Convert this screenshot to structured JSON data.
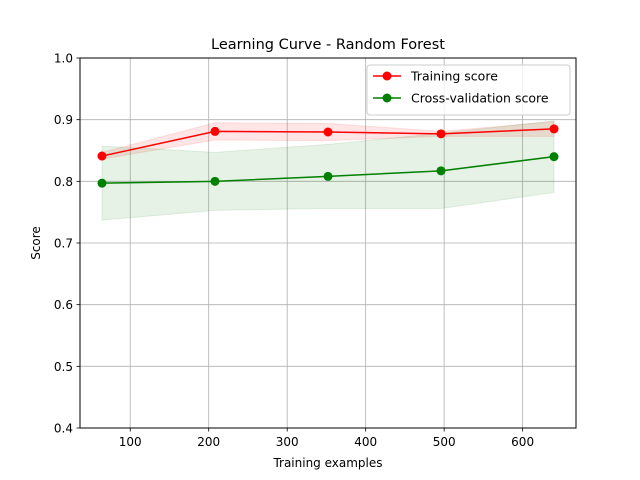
{
  "chart_data": {
    "type": "line",
    "title": "Learning Curve - Random Forest",
    "xlabel": "Training examples",
    "ylabel": "Score",
    "xlim": [
      36,
      668
    ],
    "ylim": [
      0.4,
      1.0
    ],
    "xticks": [
      100,
      200,
      300,
      400,
      500,
      600
    ],
    "yticks": [
      0.4,
      0.5,
      0.6,
      0.7,
      0.8,
      0.9,
      1.0
    ],
    "grid": true,
    "legend_position": "top-right",
    "x": [
      64,
      208,
      352,
      496,
      640
    ],
    "series": [
      {
        "name": "Training score",
        "color": "#ff0000",
        "marker": "circle",
        "values": [
          0.841,
          0.881,
          0.88,
          0.877,
          0.885
        ],
        "band_lower": [
          0.836,
          0.867,
          0.866,
          0.873,
          0.873
        ],
        "band_upper": [
          0.847,
          0.895,
          0.894,
          0.881,
          0.897
        ]
      },
      {
        "name": "Cross-validation score",
        "color": "#008000",
        "marker": "circle",
        "values": [
          0.797,
          0.8,
          0.808,
          0.817,
          0.84
        ],
        "band_lower": [
          0.737,
          0.753,
          0.756,
          0.756,
          0.782
        ],
        "band_upper": [
          0.857,
          0.847,
          0.86,
          0.878,
          0.898
        ]
      }
    ]
  }
}
